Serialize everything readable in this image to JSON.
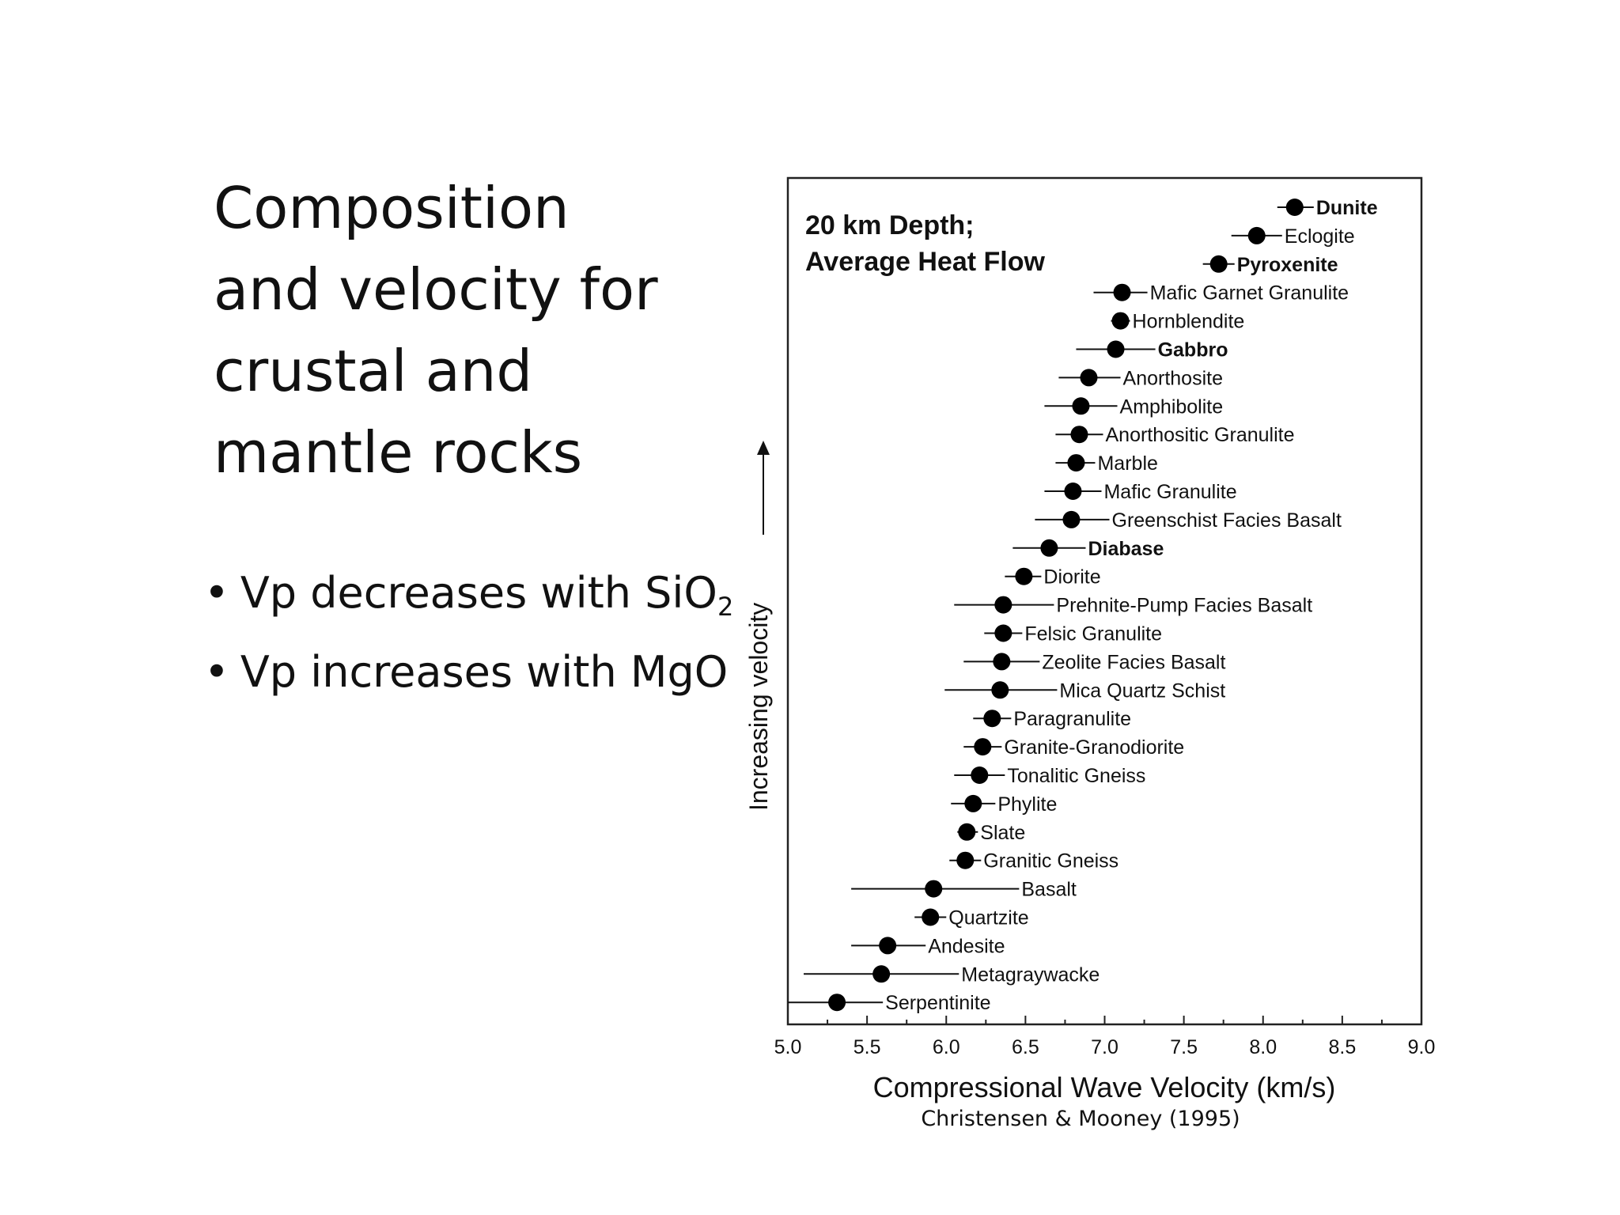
{
  "slide": {
    "title_lines": [
      "Composition",
      "and velocity for",
      "crustal and",
      "mantle rocks"
    ],
    "bullet_marker": "•",
    "bullets": [
      {
        "text": "Vp decreases with SiO",
        "subscript": "2"
      },
      {
        "text": "Vp increases with MgO",
        "subscript": ""
      }
    ]
  },
  "chart_data": {
    "type": "scatter",
    "annotation": [
      "20 km Depth;",
      "Average Heat Flow"
    ],
    "xlabel": "Compressional Wave Velocity (km/s)",
    "ylabel": "Increasing velocity",
    "source": "Christensen & Mooney (1995)",
    "xlim": [
      5.0,
      9.0
    ],
    "xticks": [
      "5.0",
      "5.5",
      "6.0",
      "6.5",
      "7.0",
      "7.5",
      "8.0",
      "8.5",
      "9.0"
    ],
    "error_bars": true,
    "points": [
      {
        "name": "Dunite",
        "x": 8.2,
        "xmin": 8.09,
        "xmax": 8.32,
        "bold": true
      },
      {
        "name": "Eclogite",
        "x": 7.96,
        "xmin": 7.8,
        "xmax": 8.12,
        "bold": false
      },
      {
        "name": "Pyroxenite",
        "x": 7.72,
        "xmin": 7.62,
        "xmax": 7.82,
        "bold": true
      },
      {
        "name": "Mafic Garnet Granulite",
        "x": 7.11,
        "xmin": 6.93,
        "xmax": 7.27,
        "bold": false
      },
      {
        "name": "Hornblendite",
        "x": 7.1,
        "xmin": 7.04,
        "xmax": 7.16,
        "bold": false
      },
      {
        "name": "Gabbro",
        "x": 7.07,
        "xmin": 6.82,
        "xmax": 7.32,
        "bold": true
      },
      {
        "name": "Anorthosite",
        "x": 6.9,
        "xmin": 6.71,
        "xmax": 7.1,
        "bold": false
      },
      {
        "name": "Amphibolite",
        "x": 6.85,
        "xmin": 6.62,
        "xmax": 7.08,
        "bold": false
      },
      {
        "name": "Anorthositic Granulite",
        "x": 6.84,
        "xmin": 6.69,
        "xmax": 6.99,
        "bold": false
      },
      {
        "name": "Marble",
        "x": 6.82,
        "xmin": 6.69,
        "xmax": 6.94,
        "bold": false
      },
      {
        "name": "Mafic Granulite",
        "x": 6.8,
        "xmin": 6.62,
        "xmax": 6.98,
        "bold": false
      },
      {
        "name": "Greenschist Facies Basalt",
        "x": 6.79,
        "xmin": 6.56,
        "xmax": 7.03,
        "bold": false
      },
      {
        "name": "Diabase",
        "x": 6.65,
        "xmin": 6.42,
        "xmax": 6.88,
        "bold": true
      },
      {
        "name": "Diorite",
        "x": 6.49,
        "xmin": 6.37,
        "xmax": 6.6,
        "bold": false
      },
      {
        "name": "Prehnite-Pump Facies Basalt",
        "x": 6.36,
        "xmin": 6.05,
        "xmax": 6.68,
        "bold": false
      },
      {
        "name": "Felsic Granulite",
        "x": 6.36,
        "xmin": 6.24,
        "xmax": 6.48,
        "bold": false
      },
      {
        "name": "Zeolite Facies Basalt",
        "x": 6.35,
        "xmin": 6.11,
        "xmax": 6.59,
        "bold": false
      },
      {
        "name": "Mica Quartz Schist",
        "x": 6.34,
        "xmin": 5.99,
        "xmax": 6.7,
        "bold": false
      },
      {
        "name": "Paragranulite",
        "x": 6.29,
        "xmin": 6.17,
        "xmax": 6.41,
        "bold": false
      },
      {
        "name": "Granite-Granodiorite",
        "x": 6.23,
        "xmin": 6.11,
        "xmax": 6.35,
        "bold": false
      },
      {
        "name": "Tonalitic Gneiss",
        "x": 6.21,
        "xmin": 6.05,
        "xmax": 6.37,
        "bold": false
      },
      {
        "name": "Phylite",
        "x": 6.17,
        "xmin": 6.03,
        "xmax": 6.31,
        "bold": false
      },
      {
        "name": "Slate",
        "x": 6.13,
        "xmin": 6.07,
        "xmax": 6.2,
        "bold": false
      },
      {
        "name": "Granitic Gneiss",
        "x": 6.12,
        "xmin": 6.02,
        "xmax": 6.22,
        "bold": false
      },
      {
        "name": "Basalt",
        "x": 5.92,
        "xmin": 5.4,
        "xmax": 6.46,
        "bold": false
      },
      {
        "name": "Quartzite",
        "x": 5.9,
        "xmin": 5.8,
        "xmax": 6.0,
        "bold": false
      },
      {
        "name": "Andesite",
        "x": 5.63,
        "xmin": 5.4,
        "xmax": 5.87,
        "bold": false
      },
      {
        "name": "Metagraywacke",
        "x": 5.59,
        "xmin": 5.1,
        "xmax": 6.08,
        "bold": false
      },
      {
        "name": "Serpentinite",
        "x": 5.31,
        "xmin": 5.0,
        "xmax": 5.6,
        "bold": false
      }
    ]
  }
}
